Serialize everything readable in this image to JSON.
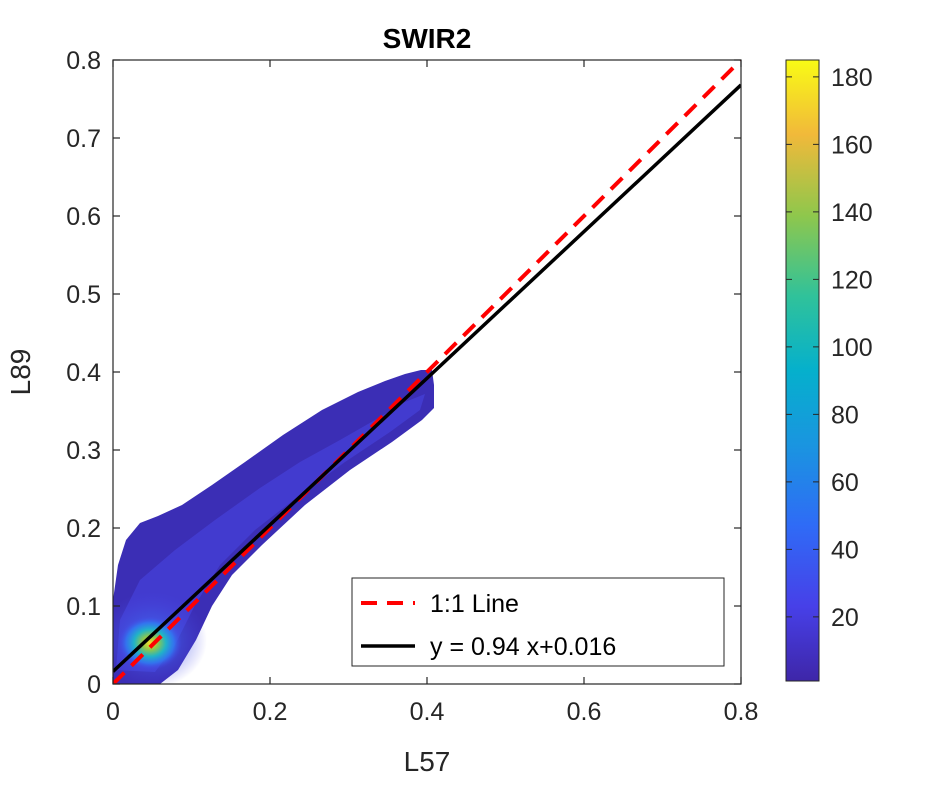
{
  "chart_data": {
    "type": "scatter",
    "title": "SWIR2",
    "xlabel": "L57",
    "ylabel": "L89",
    "xlim": [
      0,
      0.8
    ],
    "ylim": [
      0,
      0.8
    ],
    "xticks": [
      0,
      0.2,
      0.4,
      0.6,
      0.8
    ],
    "xtick_labels": [
      "0",
      "0.2",
      "0.4",
      "0.6",
      "0.8"
    ],
    "yticks": [
      0,
      0.1,
      0.2,
      0.3,
      0.4,
      0.5,
      0.6,
      0.7,
      0.8
    ],
    "ytick_labels": [
      "0",
      "0.1",
      "0.2",
      "0.3",
      "0.4",
      "0.5",
      "0.6",
      "0.7",
      "0.8"
    ],
    "grid": false,
    "legend_position": "bottom-right",
    "density_cloud": {
      "x_range": [
        0,
        0.41
      ],
      "y_range": [
        0,
        0.4
      ],
      "peak": [
        0.05,
        0.055
      ],
      "colormap": "parula"
    },
    "colorbar": {
      "range": [
        1,
        185
      ],
      "ticks": [
        20,
        40,
        60,
        80,
        100,
        120,
        140,
        160,
        180
      ],
      "tick_labels": [
        "20",
        "40",
        "60",
        "80",
        "100",
        "120",
        "140",
        "160",
        "180"
      ]
    },
    "lines": [
      {
        "name": "1:1 Line",
        "slope": 1,
        "intercept": 0,
        "color": "#ff0000",
        "style": "dashed"
      },
      {
        "name": "y = 0.94 x+0.016",
        "slope": 0.94,
        "intercept": 0.016,
        "color": "#000000",
        "style": "solid"
      }
    ],
    "legend": [
      "1:1 Line",
      "y = 0.94 x+0.016"
    ]
  }
}
